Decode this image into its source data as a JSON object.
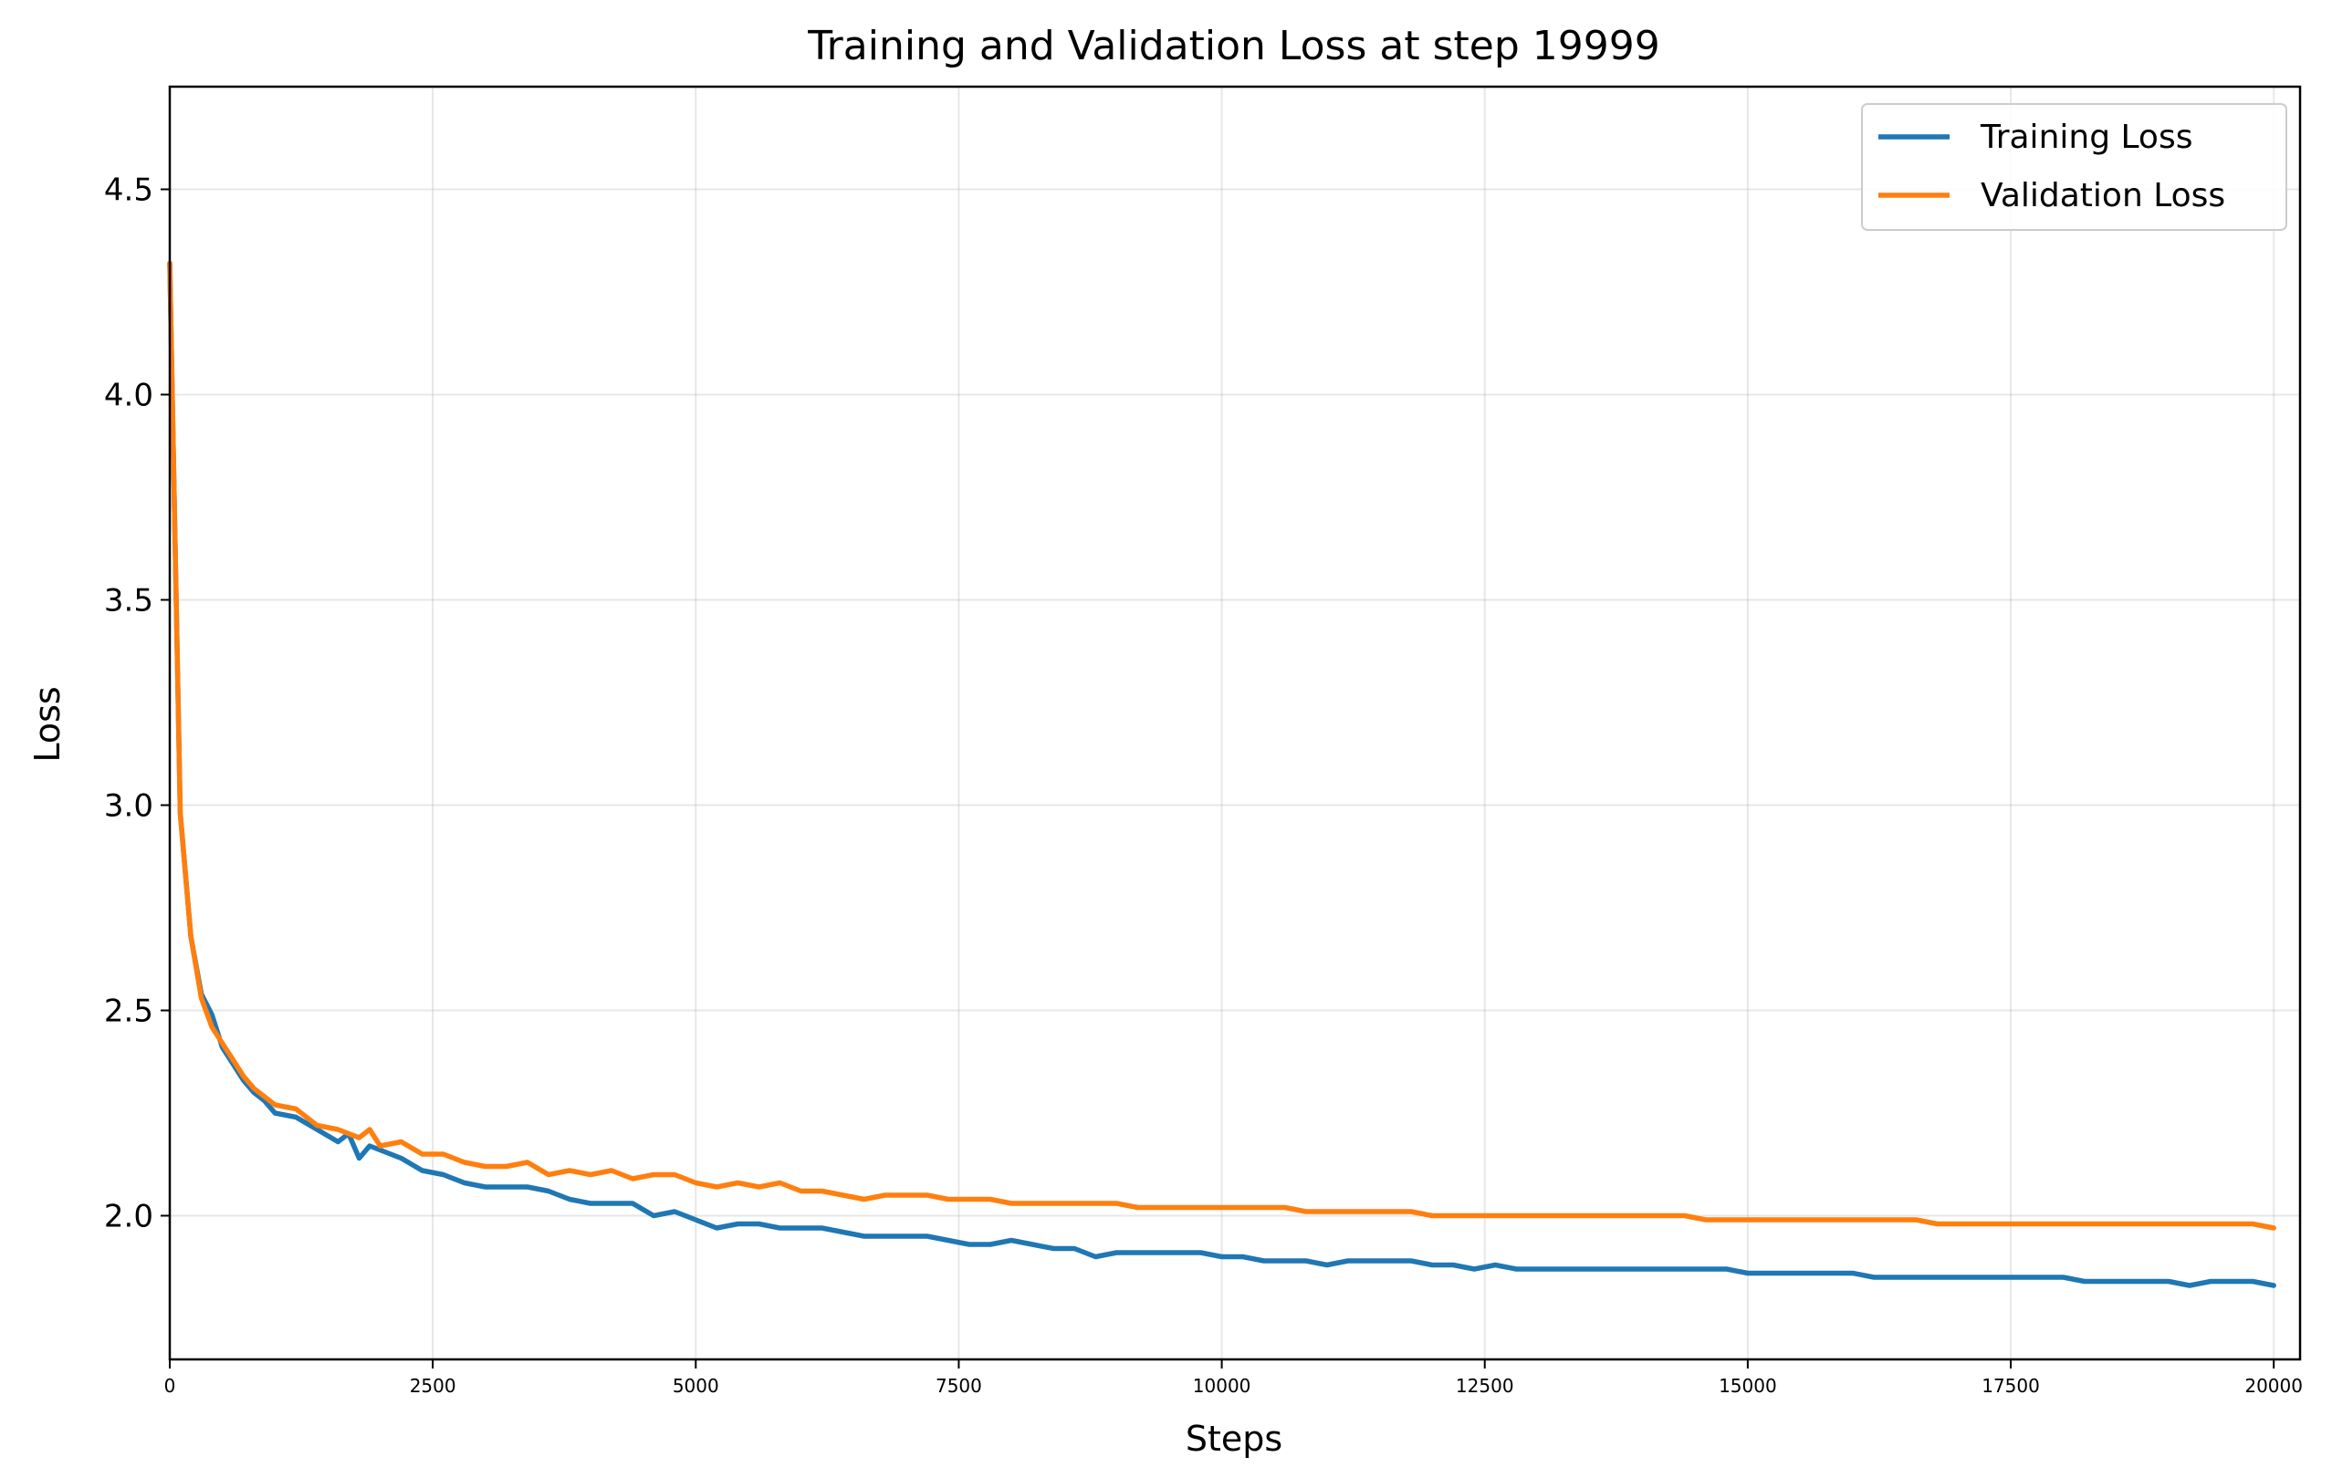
{
  "chart_data": {
    "type": "line",
    "title": "Training and Validation Loss at step 19999",
    "xlabel": "Steps",
    "ylabel": "Loss",
    "xlim": [
      0,
      20250
    ],
    "ylim": [
      1.65,
      4.75
    ],
    "xticks": [
      0,
      2500,
      5000,
      7500,
      10000,
      12500,
      15000,
      17500,
      20000
    ],
    "xtick_labels": [
      "0",
      "2500",
      "5000",
      "7500",
      "10000",
      "12500",
      "15000",
      "17500",
      "20000"
    ],
    "yticks": [
      2.0,
      2.5,
      3.0,
      3.5,
      4.0,
      4.5
    ],
    "ytick_labels": [
      "2.0",
      "2.5",
      "3.0",
      "3.5",
      "4.0",
      "4.5"
    ],
    "grid": true,
    "legend_position": "top-right",
    "colors": {
      "training": "#1f77b4",
      "validation": "#ff7f0e"
    },
    "series": [
      {
        "name": "Training Loss",
        "color": "#1f77b4",
        "x": [
          0,
          100,
          200,
          300,
          400,
          500,
          600,
          700,
          800,
          900,
          1000,
          1200,
          1400,
          1600,
          1700,
          1800,
          1900,
          2000,
          2200,
          2400,
          2600,
          2800,
          3000,
          3200,
          3400,
          3600,
          3800,
          4000,
          4200,
          4400,
          4600,
          4800,
          5000,
          5200,
          5400,
          5600,
          5800,
          6000,
          6200,
          6400,
          6600,
          6800,
          7000,
          7200,
          7400,
          7600,
          7800,
          8000,
          8200,
          8400,
          8600,
          8800,
          9000,
          9200,
          9400,
          9600,
          9800,
          10000,
          10200,
          10400,
          10600,
          10800,
          11000,
          11200,
          11400,
          11600,
          11800,
          12000,
          12200,
          12400,
          12600,
          12800,
          13000,
          13200,
          13400,
          13600,
          13800,
          14000,
          14200,
          14400,
          14600,
          14800,
          15000,
          15200,
          15400,
          15600,
          15800,
          16000,
          16200,
          16400,
          16600,
          16800,
          17000,
          17200,
          17400,
          17600,
          17800,
          18000,
          18200,
          18400,
          18600,
          18800,
          19000,
          19200,
          19400,
          19600,
          19800,
          20000
        ],
        "y": [
          4.32,
          2.98,
          2.68,
          2.54,
          2.49,
          2.41,
          2.37,
          2.33,
          2.3,
          2.28,
          2.25,
          2.24,
          2.21,
          2.18,
          2.2,
          2.14,
          2.17,
          2.16,
          2.14,
          2.11,
          2.1,
          2.08,
          2.07,
          2.07,
          2.07,
          2.06,
          2.04,
          2.03,
          2.03,
          2.03,
          2.0,
          2.01,
          1.99,
          1.97,
          1.98,
          1.98,
          1.97,
          1.97,
          1.97,
          1.96,
          1.95,
          1.95,
          1.95,
          1.95,
          1.94,
          1.93,
          1.93,
          1.94,
          1.93,
          1.92,
          1.92,
          1.9,
          1.91,
          1.91,
          1.91,
          1.91,
          1.91,
          1.9,
          1.9,
          1.89,
          1.89,
          1.89,
          1.88,
          1.89,
          1.89,
          1.89,
          1.89,
          1.88,
          1.88,
          1.87,
          1.88,
          1.87,
          1.87,
          1.87,
          1.87,
          1.87,
          1.87,
          1.87,
          1.87,
          1.87,
          1.87,
          1.87,
          1.86,
          1.86,
          1.86,
          1.86,
          1.86,
          1.86,
          1.85,
          1.85,
          1.85,
          1.85,
          1.85,
          1.85,
          1.85,
          1.85,
          1.85,
          1.85,
          1.84,
          1.84,
          1.84,
          1.84,
          1.84,
          1.83,
          1.84,
          1.84,
          1.84,
          1.83
        ]
      },
      {
        "name": "Validation Loss",
        "color": "#ff7f0e",
        "x": [
          0,
          100,
          200,
          300,
          400,
          500,
          600,
          700,
          800,
          900,
          1000,
          1200,
          1400,
          1600,
          1700,
          1800,
          1900,
          2000,
          2200,
          2400,
          2600,
          2800,
          3000,
          3200,
          3400,
          3600,
          3800,
          4000,
          4200,
          4400,
          4600,
          4800,
          5000,
          5200,
          5400,
          5600,
          5800,
          6000,
          6200,
          6400,
          6600,
          6800,
          7000,
          7200,
          7400,
          7600,
          7800,
          8000,
          8200,
          8400,
          8600,
          8800,
          9000,
          9200,
          9400,
          9600,
          9800,
          10000,
          10200,
          10400,
          10600,
          10800,
          11000,
          11200,
          11400,
          11600,
          11800,
          12000,
          12200,
          12400,
          12600,
          12800,
          13000,
          13200,
          13400,
          13600,
          13800,
          14000,
          14200,
          14400,
          14600,
          14800,
          15000,
          15200,
          15400,
          15600,
          15800,
          16000,
          16200,
          16400,
          16600,
          16800,
          17000,
          17200,
          17400,
          17600,
          17800,
          18000,
          18200,
          18400,
          18600,
          18800,
          19000,
          19200,
          19400,
          19600,
          19800,
          20000
        ],
        "y": [
          4.32,
          2.98,
          2.68,
          2.53,
          2.46,
          2.42,
          2.38,
          2.34,
          2.31,
          2.29,
          2.27,
          2.26,
          2.22,
          2.21,
          2.2,
          2.19,
          2.21,
          2.17,
          2.18,
          2.15,
          2.15,
          2.13,
          2.12,
          2.12,
          2.13,
          2.1,
          2.11,
          2.1,
          2.11,
          2.09,
          2.1,
          2.1,
          2.08,
          2.07,
          2.08,
          2.07,
          2.08,
          2.06,
          2.06,
          2.05,
          2.04,
          2.05,
          2.05,
          2.05,
          2.04,
          2.04,
          2.04,
          2.03,
          2.03,
          2.03,
          2.03,
          2.03,
          2.03,
          2.02,
          2.02,
          2.02,
          2.02,
          2.02,
          2.02,
          2.02,
          2.02,
          2.01,
          2.01,
          2.01,
          2.01,
          2.01,
          2.01,
          2.0,
          2.0,
          2.0,
          2.0,
          2.0,
          2.0,
          2.0,
          2.0,
          2.0,
          2.0,
          2.0,
          2.0,
          2.0,
          1.99,
          1.99,
          1.99,
          1.99,
          1.99,
          1.99,
          1.99,
          1.99,
          1.99,
          1.99,
          1.99,
          1.98,
          1.98,
          1.98,
          1.98,
          1.98,
          1.98,
          1.98,
          1.98,
          1.98,
          1.98,
          1.98,
          1.98,
          1.98,
          1.98,
          1.98,
          1.98,
          1.97
        ]
      }
    ]
  }
}
